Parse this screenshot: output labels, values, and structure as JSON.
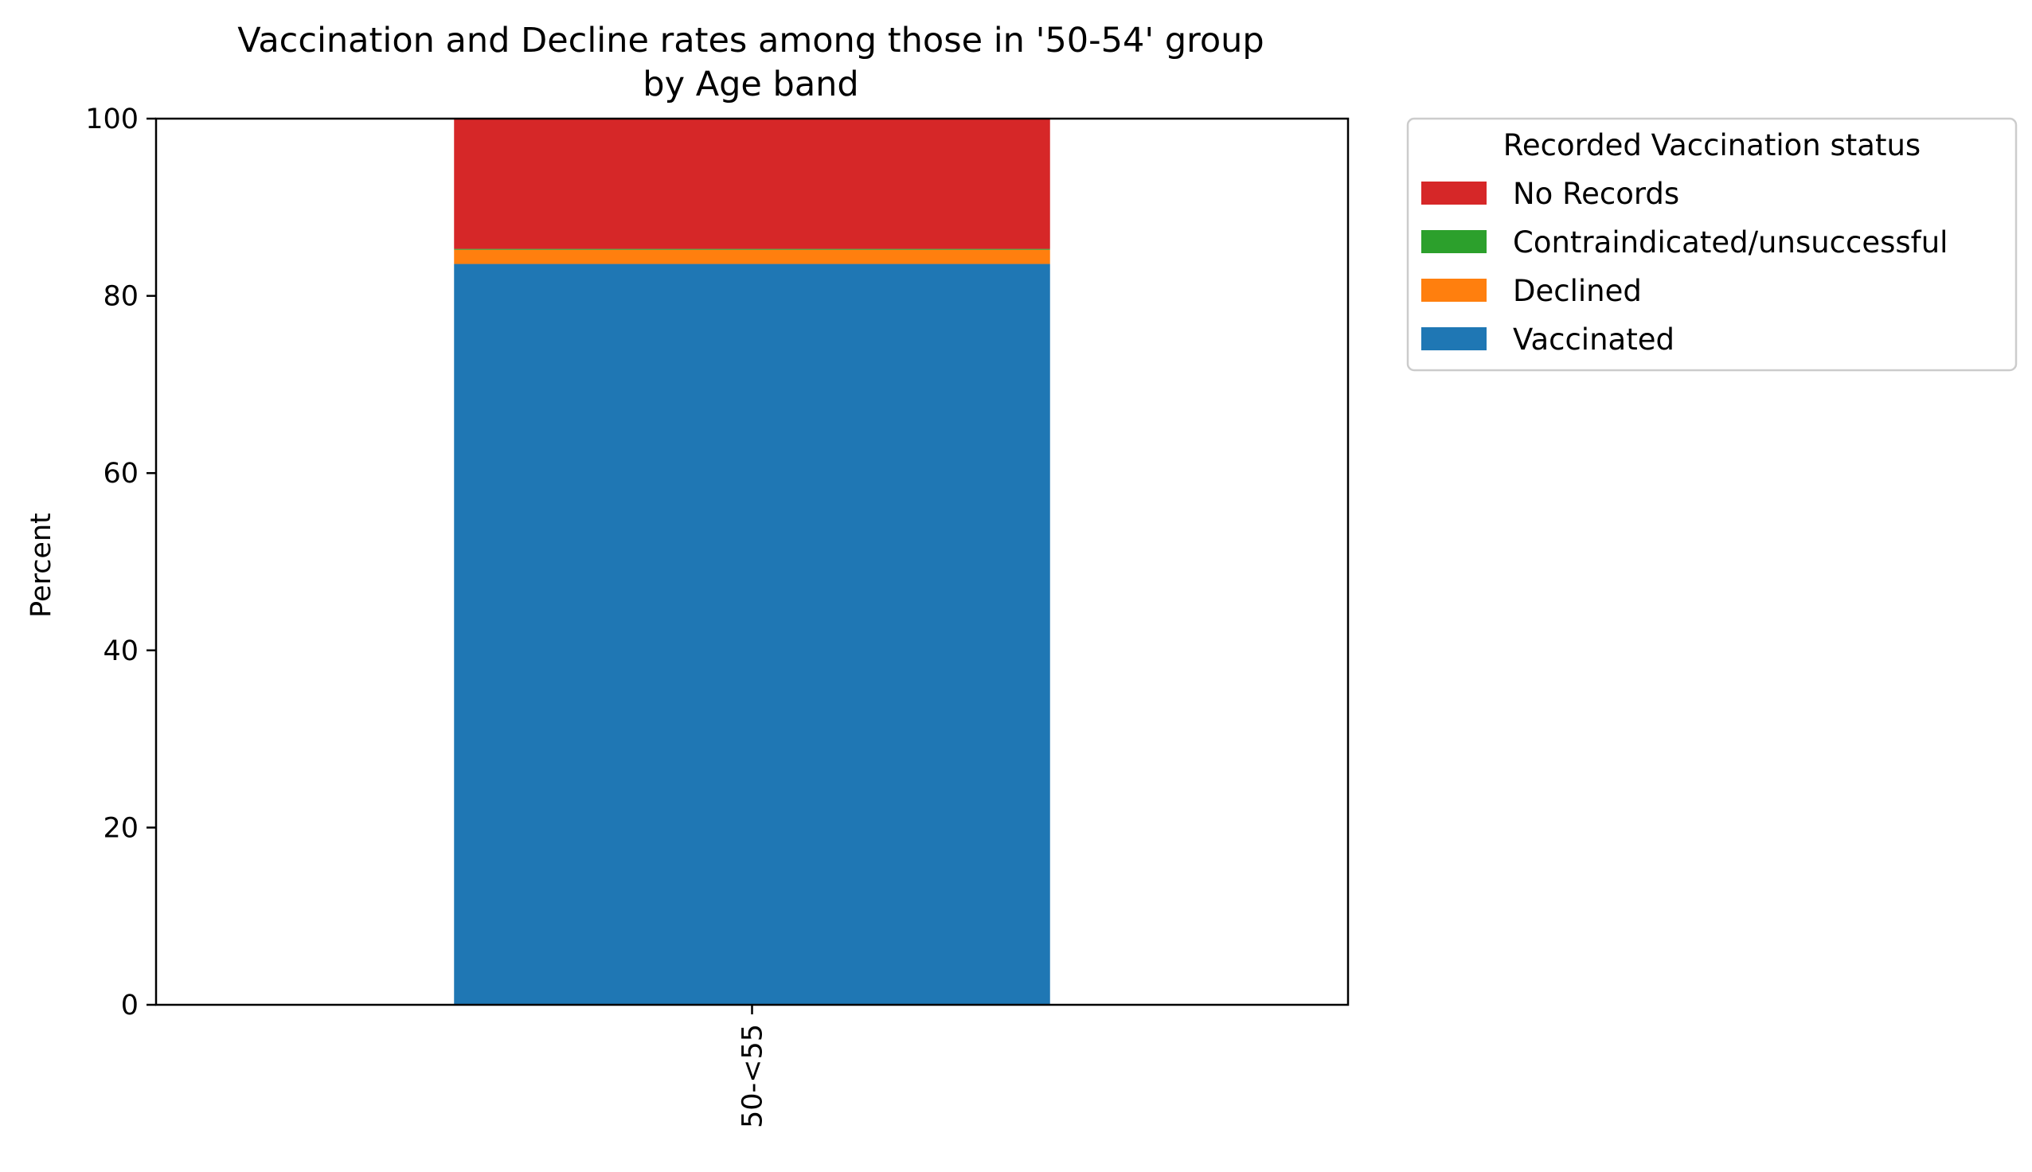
{
  "chart_data": {
    "type": "bar",
    "stacked": true,
    "title": "Vaccination and Decline rates among those in '50-54' group",
    "subtitle": "by Age band",
    "xlabel": "",
    "ylabel": "Percent",
    "ylim": [
      0,
      100
    ],
    "yticks": [
      0,
      20,
      40,
      60,
      80,
      100
    ],
    "categories": [
      "50-<55"
    ],
    "series": [
      {
        "name": "Vaccinated",
        "color": "#1f77b4",
        "values": [
          83.6
        ]
      },
      {
        "name": "Declined",
        "color": "#ff7f0e",
        "values": [
          1.6
        ]
      },
      {
        "name": "Contraindicated/unsuccessful",
        "color": "#2ca02c",
        "values": [
          0.1
        ]
      },
      {
        "name": "No Records",
        "color": "#d62728",
        "values": [
          14.7
        ]
      }
    ],
    "grid": false,
    "legend": {
      "title": "Recorded Vaccination status",
      "placement": "outside-right-top",
      "order": [
        "No Records",
        "Contraindicated/unsuccessful",
        "Declined",
        "Vaccinated"
      ]
    }
  }
}
